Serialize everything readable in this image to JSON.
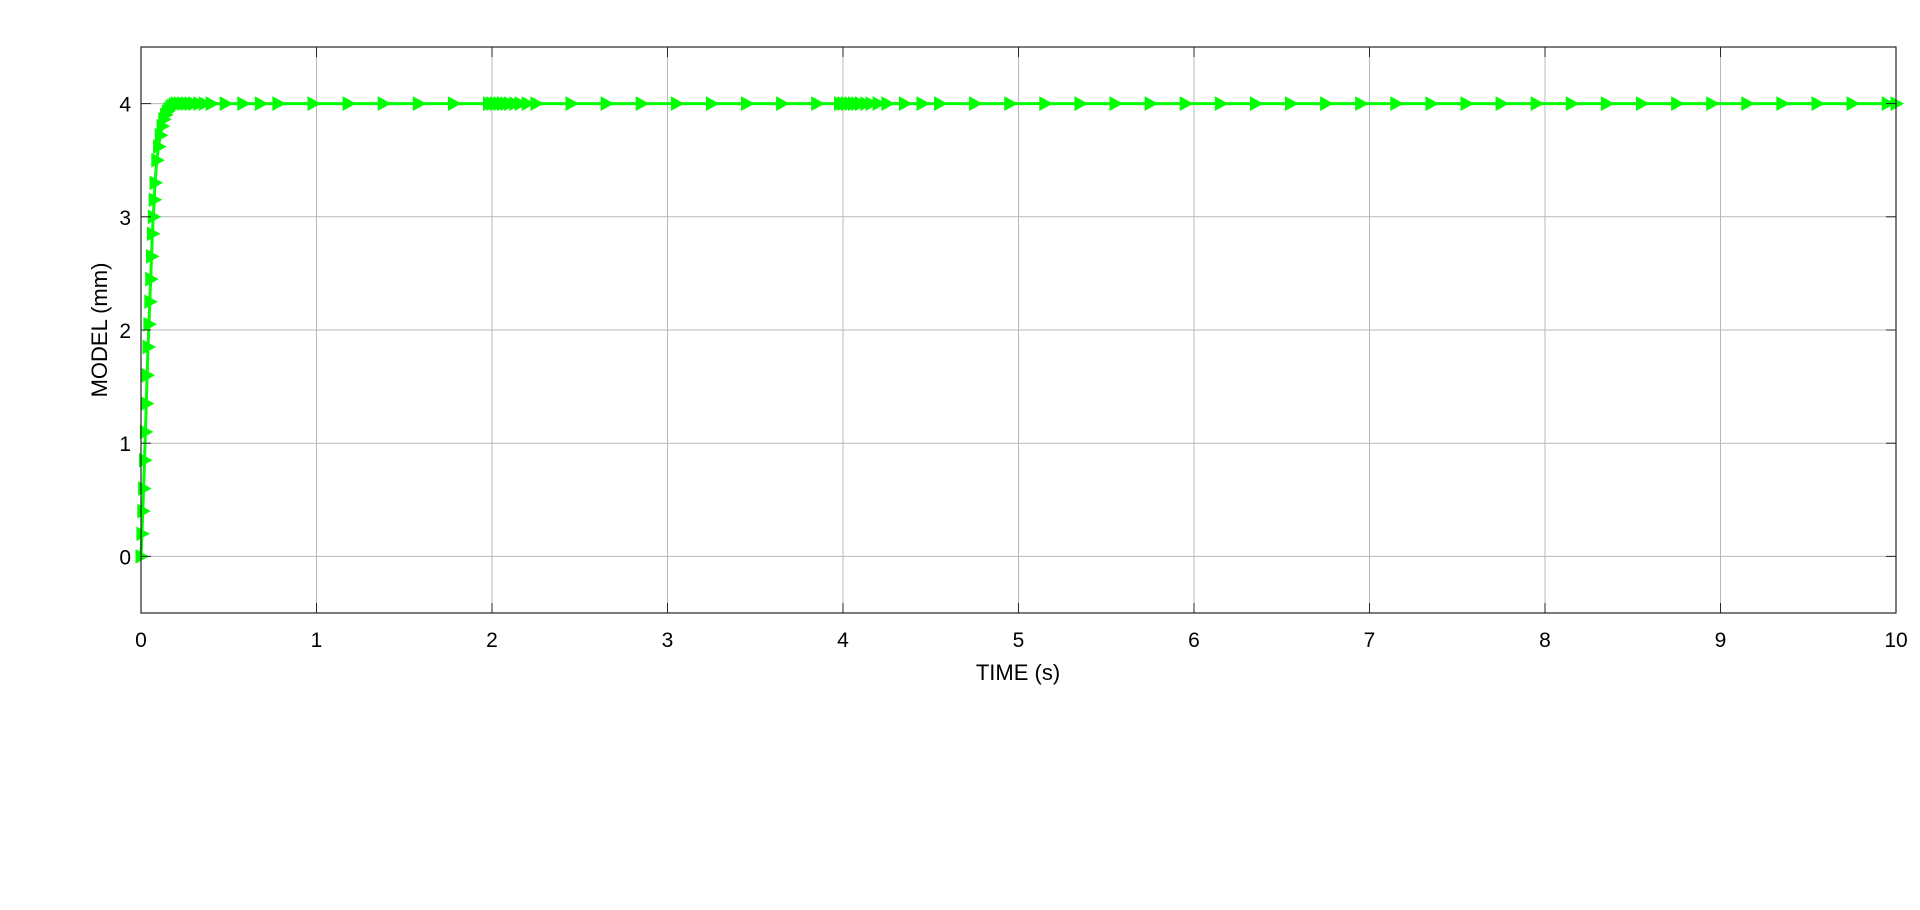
{
  "chart_data": {
    "type": "line",
    "xlabel": "TIME (s)",
    "ylabel": "MODEL (mm)",
    "xlim": [
      0,
      10
    ],
    "ylim": [
      -0.5,
      4.5
    ],
    "x_ticks": [
      0,
      1,
      2,
      3,
      4,
      5,
      6,
      7,
      8,
      9,
      10
    ],
    "y_ticks": [
      0,
      1,
      2,
      3,
      4
    ],
    "grid": true,
    "legend": "none",
    "series": [
      {
        "color": "#00ff00",
        "marker": "triangle-right",
        "x": [
          0,
          0.005,
          0.01,
          0.015,
          0.02,
          0.025,
          0.03,
          0.035,
          0.04,
          0.045,
          0.05,
          0.055,
          0.06,
          0.065,
          0.07,
          0.075,
          0.08,
          0.09,
          0.1,
          0.11,
          0.12,
          0.13,
          0.14,
          0.15,
          0.16,
          0.17,
          0.18,
          0.19,
          0.2,
          0.22,
          0.24,
          0.26,
          0.28,
          0.3,
          0.33,
          0.36,
          0.4,
          0.48,
          0.58,
          0.68,
          0.78,
          0.98,
          1.18,
          1.38,
          1.58,
          1.78,
          1.98,
          2.0,
          2.02,
          2.04,
          2.06,
          2.08,
          2.1,
          2.13,
          2.16,
          2.2,
          2.25,
          2.45,
          2.65,
          2.85,
          3.05,
          3.25,
          3.45,
          3.65,
          3.85,
          3.98,
          4.0,
          4.02,
          4.04,
          4.06,
          4.08,
          4.1,
          4.13,
          4.16,
          4.2,
          4.25,
          4.35,
          4.45,
          4.55,
          4.75,
          4.95,
          5.15,
          5.35,
          5.55,
          5.75,
          5.95,
          6.15,
          6.35,
          6.55,
          6.75,
          6.95,
          7.15,
          7.35,
          7.55,
          7.75,
          7.95,
          8.15,
          8.35,
          8.55,
          8.75,
          8.95,
          9.15,
          9.35,
          9.55,
          9.75,
          9.95,
          10.0
        ],
        "y": [
          0,
          0.2,
          0.4,
          0.6,
          0.85,
          1.1,
          1.35,
          1.6,
          1.85,
          2.05,
          2.25,
          2.45,
          2.65,
          2.85,
          3.0,
          3.15,
          3.3,
          3.5,
          3.62,
          3.72,
          3.8,
          3.86,
          3.9,
          3.93,
          3.95,
          3.97,
          3.98,
          3.99,
          4.0,
          4.0,
          4.0,
          4.0,
          4.0,
          4.0,
          4.0,
          4.0,
          4.0,
          4.0,
          4.0,
          4.0,
          4.0,
          4.0,
          4.0,
          4.0,
          4.0,
          4.0,
          4.0,
          4.0,
          4.0,
          4.0,
          4.0,
          4.0,
          4.0,
          4.0,
          4.0,
          4.0,
          4.0,
          4.0,
          4.0,
          4.0,
          4.0,
          4.0,
          4.0,
          4.0,
          4.0,
          4.0,
          4.0,
          4.0,
          4.0,
          4.0,
          4.0,
          4.0,
          4.0,
          4.0,
          4.0,
          4.0,
          4.0,
          4.0,
          4.0,
          4.0,
          4.0,
          4.0,
          4.0,
          4.0,
          4.0,
          4.0,
          4.0,
          4.0,
          4.0,
          4.0,
          4.0,
          4.0,
          4.0,
          4.0,
          4.0,
          4.0,
          4.0,
          4.0,
          4.0,
          4.0,
          4.0,
          4.0,
          4.0,
          4.0,
          4.0,
          4.0,
          4.0
        ]
      }
    ]
  }
}
